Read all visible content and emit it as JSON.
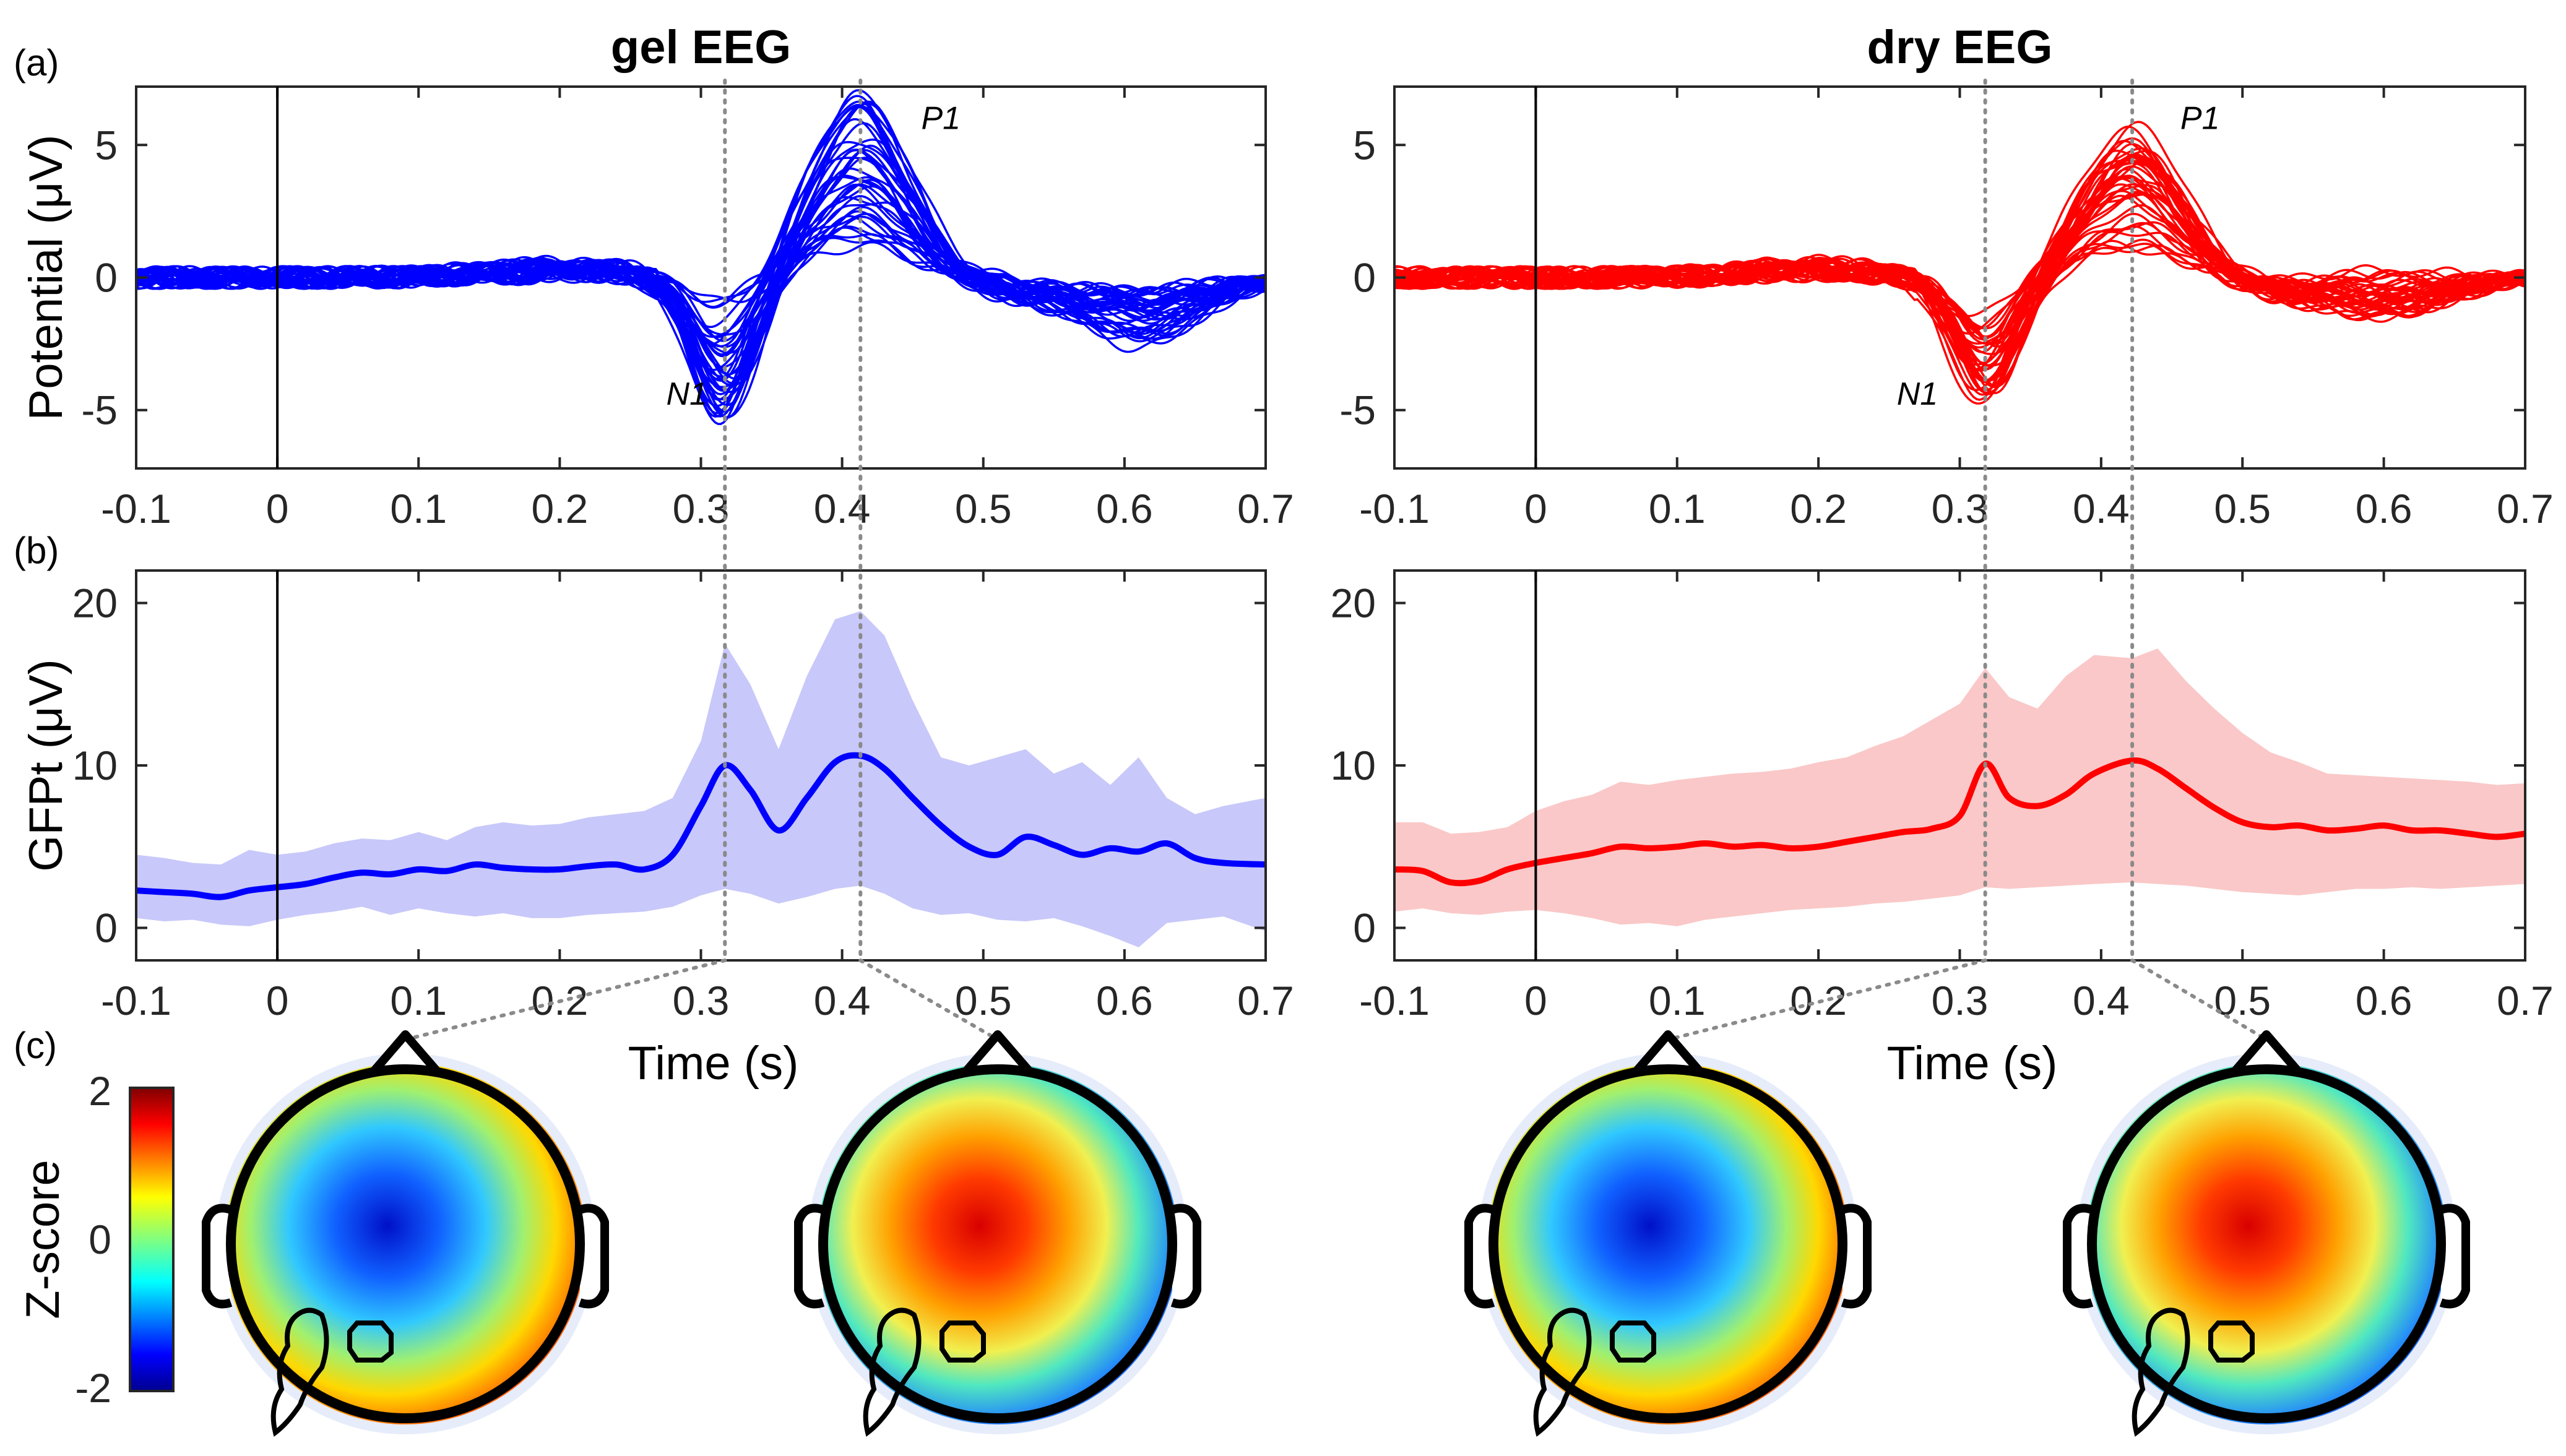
{
  "panel_labels": {
    "a": "(a)",
    "b": "(b)",
    "c": "(c)"
  },
  "colors": {
    "gel": "#0000ff",
    "dry": "#ff0000",
    "gel_band": "#c8c8fa",
    "dry_band": "#fac8c8"
  },
  "chart_data": [
    {
      "id": "gel-erp",
      "type": "line",
      "title": "gel EEG",
      "xlabel": "",
      "ylabel": "Potential (μV)",
      "xlim": [
        -0.1,
        0.7
      ],
      "ylim": [
        -7.2,
        7.2
      ],
      "xticks": [
        -0.1,
        0,
        0.1,
        0.2,
        0.3,
        0.4,
        0.5,
        0.6,
        0.7
      ],
      "xtick_labels": [
        "-0.1",
        "0",
        "0.1",
        "0.2",
        "0.3",
        "0.4",
        "0.5",
        "0.6",
        "0.7"
      ],
      "yticks": [
        -5,
        0,
        5
      ],
      "ytick_labels": [
        "-5",
        "0",
        "5"
      ],
      "annotations": [
        {
          "text": "N1",
          "x": 0.29,
          "y": -4.8
        },
        {
          "text": "P1",
          "x": 0.47,
          "y": 5.6
        }
      ],
      "vlines": [
        0.317,
        0.413
      ],
      "channel_count": 40,
      "grand_peaks": {
        "n1_time": 0.317,
        "n1_min": -5.6,
        "n1_max": -0.8,
        "p1_time": 0.413,
        "p1_min": 1.2,
        "p1_max": 6.9,
        "late_time": 0.61,
        "late_min": -2.6,
        "late_max": -0.4
      }
    },
    {
      "id": "dry-erp",
      "type": "line",
      "title": "dry EEG",
      "xlabel": "",
      "ylabel": "",
      "xlim": [
        -0.1,
        0.7
      ],
      "ylim": [
        -7.2,
        7.2
      ],
      "xticks": [
        -0.1,
        0,
        0.1,
        0.2,
        0.3,
        0.4,
        0.5,
        0.6,
        0.7
      ],
      "xtick_labels": [
        "-0.1",
        "0",
        "0.1",
        "0.2",
        "0.3",
        "0.4",
        "0.5",
        "0.6",
        "0.7"
      ],
      "yticks": [
        -5,
        0,
        5
      ],
      "ytick_labels": [
        "-5",
        "0",
        "5"
      ],
      "annotations": [
        {
          "text": "N1",
          "x": 0.27,
          "y": -4.8
        },
        {
          "text": "P1",
          "x": 0.47,
          "y": 5.6
        }
      ],
      "vlines": [
        0.318,
        0.422
      ],
      "channel_count": 40,
      "grand_peaks": {
        "n1_time": 0.318,
        "n1_min": -5.1,
        "n1_max": -0.9,
        "p1_time": 0.422,
        "p1_min": 1.0,
        "p1_max": 5.8,
        "late_time": 0.6,
        "late_min": -1.6,
        "late_max": 0.3
      }
    },
    {
      "id": "gel-gfp",
      "type": "area",
      "title": "",
      "xlabel": "Time (s)",
      "ylabel": "GFPt (μV)",
      "xlim": [
        -0.1,
        0.7
      ],
      "ylim": [
        -2,
        22
      ],
      "xticks": [
        -0.1,
        0,
        0.1,
        0.2,
        0.3,
        0.4,
        0.5,
        0.6,
        0.7
      ],
      "xtick_labels": [
        "-0.1",
        "0",
        "0.1",
        "0.2",
        "0.3",
        "0.4",
        "0.5",
        "0.6",
        "0.7"
      ],
      "yticks": [
        0,
        10,
        20
      ],
      "ytick_labels": [
        "0",
        "10",
        "20"
      ],
      "vlines": [
        0.317,
        0.413
      ],
      "x": [
        -0.1,
        -0.08,
        -0.06,
        -0.04,
        -0.02,
        0,
        0.02,
        0.04,
        0.06,
        0.08,
        0.1,
        0.12,
        0.14,
        0.16,
        0.18,
        0.2,
        0.22,
        0.24,
        0.26,
        0.28,
        0.3,
        0.317,
        0.335,
        0.355,
        0.375,
        0.395,
        0.413,
        0.43,
        0.45,
        0.47,
        0.49,
        0.51,
        0.53,
        0.55,
        0.57,
        0.59,
        0.61,
        0.63,
        0.65,
        0.67,
        0.7
      ],
      "mean": [
        2.3,
        2.2,
        2.1,
        1.9,
        2.3,
        2.5,
        2.7,
        3.1,
        3.4,
        3.3,
        3.6,
        3.5,
        3.9,
        3.7,
        3.6,
        3.6,
        3.8,
        3.9,
        3.6,
        4.5,
        7.5,
        10.0,
        8.5,
        6.0,
        8.0,
        10.2,
        10.6,
        9.8,
        8.0,
        6.3,
        5.0,
        4.5,
        5.6,
        5.1,
        4.5,
        4.9,
        4.7,
        5.2,
        4.3,
        4.0,
        3.9
      ],
      "upper": [
        4.5,
        4.3,
        4.0,
        3.9,
        4.8,
        4.5,
        4.7,
        5.2,
        5.5,
        5.4,
        5.9,
        5.4,
        6.2,
        6.5,
        6.3,
        6.4,
        6.8,
        7.0,
        7.2,
        8.0,
        11.5,
        17.5,
        15.0,
        11.0,
        15.5,
        19.0,
        19.5,
        18.0,
        14.0,
        10.5,
        10.0,
        10.5,
        11.0,
        9.5,
        10.2,
        8.8,
        10.5,
        8.0,
        7.0,
        7.5,
        8.0
      ],
      "lower": [
        0.6,
        0.4,
        0.5,
        0.2,
        0.1,
        0.5,
        0.8,
        1.0,
        1.3,
        0.8,
        1.2,
        0.9,
        0.7,
        0.9,
        0.6,
        0.6,
        0.8,
        0.9,
        1.0,
        1.3,
        2.0,
        2.4,
        2.1,
        1.5,
        1.9,
        2.4,
        2.6,
        2.1,
        1.2,
        0.8,
        0.9,
        0.5,
        0.4,
        0.6,
        0.1,
        -0.5,
        -1.2,
        0.3,
        0.5,
        0.7,
        -0.2
      ]
    },
    {
      "id": "dry-gfp",
      "type": "area",
      "title": "",
      "xlabel": "Time (s)",
      "ylabel": "",
      "xlim": [
        -0.1,
        0.7
      ],
      "ylim": [
        -2,
        22
      ],
      "xticks": [
        -0.1,
        0,
        0.1,
        0.2,
        0.3,
        0.4,
        0.5,
        0.6,
        0.7
      ],
      "xtick_labels": [
        "-0.1",
        "0",
        "0.1",
        "0.2",
        "0.3",
        "0.4",
        "0.5",
        "0.6",
        "0.7"
      ],
      "yticks": [
        0,
        10,
        20
      ],
      "ytick_labels": [
        "0",
        "10",
        "20"
      ],
      "vlines": [
        0.318,
        0.422
      ],
      "x": [
        -0.1,
        -0.08,
        -0.06,
        -0.04,
        -0.02,
        0,
        0.02,
        0.04,
        0.06,
        0.08,
        0.1,
        0.12,
        0.14,
        0.16,
        0.18,
        0.2,
        0.22,
        0.24,
        0.26,
        0.28,
        0.3,
        0.318,
        0.335,
        0.355,
        0.375,
        0.395,
        0.422,
        0.44,
        0.46,
        0.48,
        0.5,
        0.52,
        0.54,
        0.56,
        0.58,
        0.6,
        0.62,
        0.64,
        0.66,
        0.68,
        0.7
      ],
      "mean": [
        3.6,
        3.5,
        2.8,
        2.9,
        3.6,
        4.0,
        4.3,
        4.6,
        5.0,
        4.9,
        5.0,
        5.2,
        5.0,
        5.1,
        4.9,
        5.0,
        5.3,
        5.6,
        5.9,
        6.1,
        6.9,
        10.1,
        8.0,
        7.5,
        8.2,
        9.5,
        10.3,
        9.8,
        8.6,
        7.4,
        6.5,
        6.2,
        6.3,
        6.0,
        6.1,
        6.3,
        6.0,
        6.0,
        5.8,
        5.6,
        5.8
      ],
      "upper": [
        6.5,
        6.5,
        5.8,
        5.9,
        6.2,
        7.2,
        7.8,
        8.2,
        9.0,
        8.8,
        9.1,
        9.3,
        9.5,
        9.6,
        9.8,
        10.2,
        10.5,
        11.2,
        11.8,
        12.8,
        13.8,
        16.0,
        14.2,
        13.5,
        15.5,
        16.8,
        16.6,
        17.2,
        15.2,
        13.5,
        12.0,
        10.8,
        10.2,
        9.5,
        9.4,
        9.3,
        9.2,
        9.1,
        9.0,
        8.8,
        8.9
      ],
      "lower": [
        1.0,
        1.2,
        0.9,
        0.8,
        1.0,
        1.1,
        0.9,
        0.6,
        0.2,
        0.3,
        0.1,
        0.5,
        0.7,
        0.9,
        1.1,
        1.2,
        1.3,
        1.5,
        1.6,
        1.8,
        2.0,
        2.5,
        2.4,
        2.5,
        2.6,
        2.7,
        2.8,
        2.7,
        2.6,
        2.4,
        2.2,
        2.1,
        2.0,
        2.2,
        2.4,
        2.4,
        2.5,
        2.4,
        2.5,
        2.6,
        2.7
      ]
    },
    {
      "id": "zscore-colorbar",
      "type": "heatmap",
      "title": "",
      "ylabel": "Z-score",
      "colormap": "jet",
      "clim": [
        -2,
        2
      ],
      "ticks": [
        -2,
        0,
        2
      ],
      "tick_labels": [
        "-2",
        "0",
        "2"
      ],
      "topomaps": [
        {
          "name": "gel N1 topography",
          "center_value": -2.0,
          "rim_back_value": 1.8,
          "top_value": 0.6
        },
        {
          "name": "gel P1 topography",
          "center_value": 2.0,
          "rim_back_value": -1.8,
          "top_value": 0.1
        },
        {
          "name": "dry N1 topography",
          "center_value": -1.8,
          "rim_back_value": 1.6,
          "top_value": 0.8
        },
        {
          "name": "dry P1 topography",
          "center_value": 1.7,
          "rim_back_value": -1.9,
          "top_value": 0.0
        }
      ]
    }
  ]
}
